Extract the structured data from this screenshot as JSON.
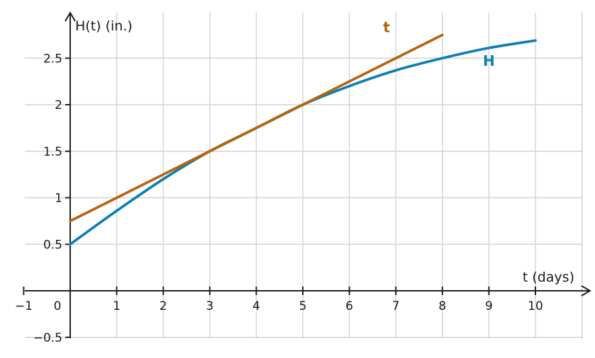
{
  "chart_data": {
    "type": "line",
    "xlabel": "t (days)",
    "ylabel": "H(t) (in.)",
    "xlim": [
      -1,
      11
    ],
    "ylim": [
      -0.5,
      2.9
    ],
    "grid": true,
    "x_ticks": [
      {
        "value": -1,
        "label": "−1"
      },
      {
        "value": 0,
        "label": "0"
      },
      {
        "value": 1,
        "label": "1"
      },
      {
        "value": 2,
        "label": "2"
      },
      {
        "value": 3,
        "label": "3"
      },
      {
        "value": 4,
        "label": "4"
      },
      {
        "value": 5,
        "label": "5"
      },
      {
        "value": 6,
        "label": "6"
      },
      {
        "value": 7,
        "label": "7"
      },
      {
        "value": 8,
        "label": "8"
      },
      {
        "value": 9,
        "label": "9"
      },
      {
        "value": 10,
        "label": "10"
      }
    ],
    "y_ticks": [
      {
        "value": -0.5,
        "label": "−0.5"
      },
      {
        "value": 0.5,
        "label": "0.5"
      },
      {
        "value": 1,
        "label": "1"
      },
      {
        "value": 1.5,
        "label": "1.5"
      },
      {
        "value": 2,
        "label": "2"
      },
      {
        "value": 2.5,
        "label": "2.5"
      }
    ],
    "series": [
      {
        "name": "H",
        "color": "#0b7fb3",
        "x": [
          0,
          1,
          2,
          3,
          4,
          5,
          6,
          7,
          8,
          9,
          10
        ],
        "y": [
          0.5,
          0.86,
          1.2,
          1.5,
          1.75,
          2.0,
          2.2,
          2.37,
          2.5,
          2.61,
          2.69
        ],
        "label_at": [
          9,
          2.42
        ]
      },
      {
        "name": "t",
        "color": "#b8620e",
        "x": [
          0,
          8
        ],
        "y": [
          0.75,
          2.75
        ],
        "label_at": [
          6.8,
          2.78
        ]
      }
    ]
  }
}
